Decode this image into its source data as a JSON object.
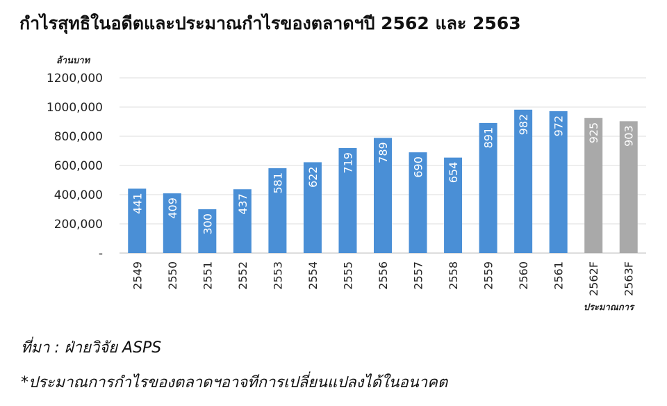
{
  "title": "กำไรสุทธิในอดีตและประมาณกำไรของตลาดฯปี 2562 และ 2563",
  "source": "ที่มา : ฝ่ายวิจัย ASPS",
  "note": "*ประมาณการกำไรของตลาดฯอาจทีการเปลี่ยนแปลงได้ในอนาคต",
  "colors": {
    "actual": "#4a8fd6",
    "forecast": "#a9a9a9",
    "grid": "#dedede",
    "bar_label": "#ffffff"
  },
  "chart_data": {
    "type": "bar",
    "title": "",
    "ylabel": "ล้านบาท",
    "xlabel": "ประมาณการ",
    "ylim": [
      0,
      1200000
    ],
    "yticks": [
      0,
      200000,
      400000,
      600000,
      800000,
      1000000,
      1200000
    ],
    "ytick_labels": [
      "-",
      "200,000",
      "400,000",
      "600,000",
      "800,000",
      "1000,000",
      "1200,000"
    ],
    "grid": true,
    "categories": [
      "2549",
      "2550",
      "2551",
      "2552",
      "2553",
      "2554",
      "2555",
      "2556",
      "2557",
      "2558",
      "2559",
      "2560",
      "2561",
      "2562F",
      "2563F"
    ],
    "values": [
      441000,
      409000,
      300000,
      437000,
      581000,
      622000,
      719000,
      789000,
      690000,
      654000,
      891000,
      982000,
      972000,
      925000,
      903000
    ],
    "data_labels": [
      "441",
      "409",
      "300",
      "437",
      "581",
      "622",
      "719",
      "789",
      "690",
      "654",
      "891",
      "982",
      "972",
      "925",
      "903"
    ],
    "forecast": [
      false,
      false,
      false,
      false,
      false,
      false,
      false,
      false,
      false,
      false,
      false,
      false,
      false,
      true,
      true
    ]
  }
}
